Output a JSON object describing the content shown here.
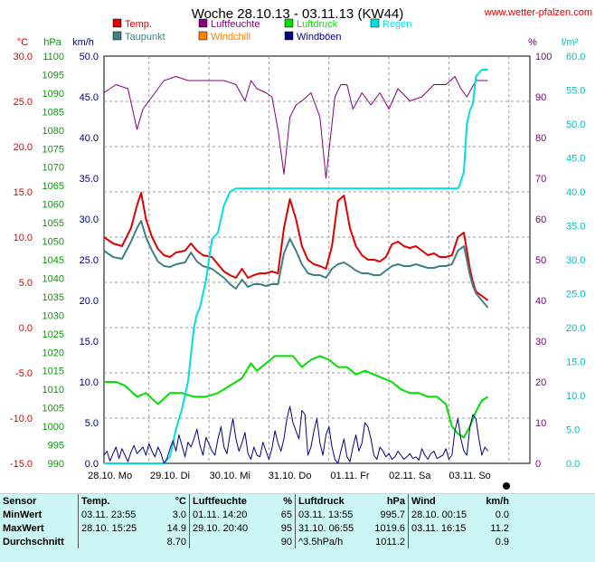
{
  "title": "Woche 28.10.13 - 03.11.13 (KW44)",
  "site": "www.wetter-pfalzen.com",
  "chart_data": {
    "type": "line",
    "title": "Woche 28.10.13 - 03.11.13 (KW44)",
    "x_labels": [
      "28.10. Mo",
      "29.10. Di",
      "30.10. Mi",
      "31.10. Do",
      "01.11. Fr",
      "02.11. Sa",
      "03.11. So"
    ],
    "axes": {
      "temp": {
        "unit": "°C",
        "min": -15,
        "max": 30,
        "ticks": [
          "30.0",
          "25.0",
          "20.0",
          "15.0",
          "10.0",
          "5.0",
          "0.0",
          "-5.0",
          "-10.0",
          "-15.0"
        ],
        "color": "#e00000"
      },
      "pressure": {
        "unit": "hPa",
        "min": 990,
        "max": 1100,
        "ticks": [
          "1100",
          "1095",
          "1090",
          "1085",
          "1080",
          "1075",
          "1070",
          "1065",
          "1060",
          "1055",
          "1050",
          "1045",
          "1040",
          "1035",
          "1030",
          "1025",
          "1020",
          "1015",
          "1010",
          "1005",
          "1000",
          "995",
          "990"
        ],
        "color": "#00a000"
      },
      "wind": {
        "unit": "km/h",
        "min": 0,
        "max": 50,
        "ticks": [
          "50.0",
          "45.0",
          "40.0",
          "35.0",
          "30.0",
          "25.0",
          "20.0",
          "15.0",
          "10.0",
          "5.0",
          "0.0"
        ],
        "color": "#000080"
      },
      "humidity": {
        "unit": "%",
        "min": 0,
        "max": 100,
        "ticks": [
          "100",
          "90",
          "80",
          "70",
          "60",
          "50",
          "40",
          "30",
          "20",
          "10",
          "0"
        ],
        "color": "#800080"
      },
      "rain": {
        "unit": "l/m²",
        "min": 0,
        "max": 60,
        "ticks": [
          "60.0",
          "55.0",
          "50.0",
          "45.0",
          "40.0",
          "35.0",
          "30.0",
          "25.0",
          "20.0",
          "15.0",
          "10.0",
          "5.0",
          "0.0"
        ],
        "color": "#00c0c0"
      }
    },
    "legend": [
      {
        "name": "Temp.",
        "color": "#e00000"
      },
      {
        "name": "Luftfeuchte",
        "color": "#800080"
      },
      {
        "name": "Luftdruck",
        "color": "#00e000"
      },
      {
        "name": "Regen",
        "color": "#00e0e0"
      },
      {
        "name": "Taupunkt",
        "color": "#408080"
      },
      {
        "name": "Windchill",
        "color": "#ff8000"
      },
      {
        "name": "Windböen",
        "color": "#000080"
      }
    ],
    "series": [
      {
        "name": "Temp.",
        "axis": "temp",
        "color": "#e00000",
        "x": [
          0,
          0.15,
          0.3,
          0.45,
          0.55,
          0.62,
          0.7,
          0.8,
          0.9,
          1.0,
          1.1,
          1.2,
          1.35,
          1.45,
          1.55,
          1.65,
          1.8,
          1.9,
          2.0,
          2.1,
          2.2,
          2.3,
          2.4,
          2.5,
          2.6,
          2.7,
          2.8,
          2.9,
          3.0,
          3.1,
          3.2,
          3.3,
          3.4,
          3.5,
          3.6,
          3.7,
          3.8,
          3.9,
          4.0,
          4.1,
          4.2,
          4.3,
          4.4,
          4.5,
          4.6,
          4.7,
          4.8,
          4.9,
          5.0,
          5.1,
          5.2,
          5.3,
          5.4,
          5.5,
          5.6,
          5.7,
          5.8,
          5.9,
          6.0,
          6.05,
          6.1,
          6.15,
          6.2,
          6.3,
          6.4
        ],
        "y": [
          10.0,
          9.3,
          9.0,
          11.0,
          13.5,
          14.9,
          12.0,
          10.0,
          8.7,
          8.0,
          7.8,
          8.3,
          8.5,
          9.3,
          8.5,
          8.0,
          7.8,
          7.0,
          6.2,
          5.8,
          5.5,
          6.5,
          5.5,
          5.8,
          6.0,
          6.0,
          6.2,
          6.0,
          11.0,
          14.2,
          12.0,
          9.0,
          7.5,
          7.0,
          6.8,
          6.5,
          9.0,
          14.0,
          14.6,
          11.0,
          9.0,
          8.0,
          7.5,
          7.5,
          7.3,
          7.8,
          9.2,
          9.5,
          9.0,
          8.8,
          9.0,
          8.5,
          8.0,
          8.2,
          7.8,
          7.8,
          8.0,
          10.0,
          10.5,
          8.5,
          6.5,
          5.0,
          4.0,
          3.5,
          3.0
        ]
      },
      {
        "name": "Taupunkt",
        "axis": "temp",
        "color": "#408080",
        "x": [
          0,
          0.15,
          0.3,
          0.45,
          0.55,
          0.62,
          0.7,
          0.8,
          0.9,
          1.0,
          1.1,
          1.2,
          1.35,
          1.45,
          1.55,
          1.65,
          1.8,
          1.9,
          2.0,
          2.1,
          2.2,
          2.3,
          2.4,
          2.5,
          2.6,
          2.7,
          2.8,
          2.9,
          3.0,
          3.1,
          3.2,
          3.3,
          3.4,
          3.5,
          3.6,
          3.7,
          3.8,
          3.9,
          4.0,
          4.1,
          4.2,
          4.3,
          4.4,
          4.5,
          4.6,
          4.7,
          4.8,
          4.9,
          5.0,
          5.1,
          5.2,
          5.3,
          5.4,
          5.5,
          5.6,
          5.7,
          5.8,
          5.9,
          6.0,
          6.05,
          6.1,
          6.15,
          6.2,
          6.3,
          6.4
        ],
        "y": [
          8.5,
          7.8,
          7.6,
          9.5,
          11.0,
          11.8,
          10.0,
          8.5,
          7.3,
          6.8,
          6.7,
          7.0,
          7.2,
          8.3,
          7.3,
          6.8,
          6.5,
          6.0,
          5.5,
          4.8,
          4.3,
          5.3,
          4.5,
          4.8,
          4.8,
          4.6,
          4.8,
          4.8,
          8.2,
          9.8,
          8.5,
          7.0,
          6.0,
          5.8,
          5.8,
          5.5,
          6.5,
          7.0,
          7.2,
          6.8,
          6.3,
          6.0,
          6.0,
          5.8,
          5.8,
          6.3,
          6.8,
          7.0,
          6.8,
          6.8,
          7.0,
          6.8,
          6.6,
          6.6,
          6.8,
          6.8,
          7.0,
          8.5,
          9.0,
          7.5,
          5.8,
          4.6,
          3.8,
          3.0,
          2.2
        ]
      },
      {
        "name": "Luftfeuchte",
        "axis": "humidity",
        "color": "#800080",
        "x": [
          0,
          0.2,
          0.4,
          0.55,
          0.65,
          0.8,
          1.0,
          1.2,
          1.4,
          1.6,
          1.8,
          2.0,
          2.2,
          2.35,
          2.45,
          2.55,
          2.7,
          2.8,
          2.9,
          3.0,
          3.1,
          3.2,
          3.3,
          3.45,
          3.6,
          3.7,
          3.85,
          3.95,
          4.05,
          4.15,
          4.3,
          4.45,
          4.6,
          4.75,
          4.9,
          5.1,
          5.3,
          5.5,
          5.7,
          5.85,
          5.95,
          6.05,
          6.2,
          6.4
        ],
        "y": [
          91,
          93,
          92,
          82,
          87,
          90,
          94,
          95,
          94,
          94,
          94,
          94,
          93,
          89,
          94,
          92,
          91,
          90,
          82,
          71,
          85,
          88,
          89,
          91,
          85,
          70,
          90,
          93,
          93,
          87,
          91,
          88,
          91,
          87,
          92,
          89,
          90,
          93,
          93,
          95,
          92,
          90,
          94,
          94
        ]
      },
      {
        "name": "Luftdruck",
        "axis": "pressure",
        "color": "#00e000",
        "x": [
          0,
          0.2,
          0.35,
          0.55,
          0.7,
          0.9,
          1.1,
          1.3,
          1.5,
          1.7,
          1.9,
          2.1,
          2.3,
          2.45,
          2.55,
          2.7,
          2.85,
          3.0,
          3.15,
          3.3,
          3.45,
          3.6,
          3.75,
          3.9,
          4.05,
          4.2,
          4.35,
          4.5,
          4.65,
          4.8,
          4.95,
          5.1,
          5.25,
          5.4,
          5.55,
          5.7,
          5.8,
          5.9,
          6.0,
          6.1,
          6.2,
          6.3,
          6.4
        ],
        "y": [
          1012,
          1012,
          1011,
          1008,
          1009,
          1006,
          1009,
          1009,
          1008,
          1008,
          1009,
          1011,
          1013,
          1017,
          1015,
          1017,
          1019,
          1019,
          1019,
          1016,
          1018,
          1019,
          1018,
          1016,
          1016,
          1014,
          1015,
          1014,
          1013,
          1012,
          1010,
          1009,
          1009,
          1008,
          1008,
          1006,
          1000,
          998,
          997,
          1000,
          1004,
          1007,
          1008
        ]
      },
      {
        "name": "Regen",
        "axis": "rain",
        "color": "#00e0e0",
        "x": [
          0,
          0.9,
          1.0,
          1.1,
          1.15,
          1.2,
          1.3,
          1.4,
          1.45,
          1.5,
          1.55,
          1.6,
          1.65,
          1.7,
          1.75,
          1.8,
          1.9,
          2.0,
          2.1,
          2.2,
          2.25,
          2.3,
          2.4,
          2.5,
          2.6,
          2.7,
          2.8,
          2.9,
          3.0,
          3.1,
          3.2,
          3.3,
          3.4,
          3.5,
          3.6,
          3.7,
          3.8,
          3.9,
          4.0,
          4.1,
          4.2,
          4.3,
          4.4,
          4.5,
          4.6,
          4.7,
          4.8,
          4.9,
          5.0,
          5.1,
          5.2,
          5.3,
          5.4,
          5.5,
          5.6,
          5.7,
          5.8,
          5.9,
          5.93,
          6.0,
          6.05,
          6.1,
          6.15,
          6.2,
          6.3,
          6.4
        ],
        "y": [
          0,
          0,
          0,
          1,
          3,
          5,
          8,
          12,
          16,
          20,
          22,
          23,
          25,
          27,
          30,
          33,
          34,
          38,
          40,
          40.5,
          40.5,
          40.5,
          40.5,
          40.5,
          40.5,
          40.5,
          40.5,
          40.5,
          40.5,
          40.5,
          40.5,
          40.5,
          40.5,
          40.5,
          40.5,
          40.5,
          40.5,
          40.5,
          40.5,
          40.5,
          40.5,
          40.5,
          40.5,
          40.5,
          40.5,
          40.5,
          40.5,
          40.5,
          40.5,
          40.5,
          40.5,
          40.5,
          40.5,
          40.5,
          40.5,
          40.5,
          40.5,
          40.5,
          41,
          43,
          50,
          52,
          53,
          57,
          58,
          58
        ]
      },
      {
        "name": "Windböen",
        "axis": "wind",
        "color": "#000080",
        "x": [
          0,
          0.05,
          0.1,
          0.15,
          0.2,
          0.25,
          0.3,
          0.35,
          0.4,
          0.45,
          0.5,
          0.55,
          0.6,
          0.65,
          0.7,
          0.75,
          0.8,
          0.85,
          0.9,
          0.95,
          1.0,
          1.05,
          1.1,
          1.15,
          1.2,
          1.25,
          1.3,
          1.35,
          1.4,
          1.45,
          1.5,
          1.55,
          1.6,
          1.65,
          1.7,
          1.75,
          1.8,
          1.85,
          1.9,
          1.95,
          2.0,
          2.05,
          2.1,
          2.15,
          2.2,
          2.25,
          2.3,
          2.35,
          2.4,
          2.45,
          2.5,
          2.55,
          2.6,
          2.65,
          2.7,
          2.75,
          2.8,
          2.85,
          2.9,
          2.95,
          3.0,
          3.05,
          3.1,
          3.15,
          3.2,
          3.25,
          3.3,
          3.35,
          3.4,
          3.45,
          3.5,
          3.55,
          3.6,
          3.65,
          3.7,
          3.75,
          3.8,
          3.85,
          3.9,
          3.95,
          4.0,
          4.05,
          4.1,
          4.15,
          4.2,
          4.25,
          4.3,
          4.35,
          4.4,
          4.45,
          4.5,
          4.55,
          4.6,
          4.65,
          4.7,
          4.75,
          4.8,
          4.85,
          4.9,
          4.95,
          5.0,
          5.05,
          5.1,
          5.15,
          5.2,
          5.25,
          5.3,
          5.35,
          5.4,
          5.45,
          5.5,
          5.55,
          5.6,
          5.65,
          5.7,
          5.75,
          5.8,
          5.85,
          5.9,
          5.95,
          6.0,
          6.05,
          6.1,
          6.15,
          6.2,
          6.25,
          6.3,
          6.35,
          6.4
        ],
        "y": [
          1.0,
          1.5,
          0.3,
          1.2,
          2.0,
          0.6,
          1.8,
          1.0,
          0.2,
          1.4,
          2.2,
          1.2,
          1.6,
          2.0,
          1.0,
          2.4,
          1.5,
          0.8,
          2.0,
          1.2,
          0.0,
          0.6,
          1.8,
          2.8,
          1.5,
          3.5,
          2.2,
          0.8,
          2.6,
          2.0,
          3.0,
          4.2,
          2.2,
          1.0,
          3.2,
          2.4,
          1.5,
          1.0,
          3.0,
          4.5,
          2.0,
          1.2,
          3.5,
          5.5,
          3.0,
          1.5,
          2.5,
          3.8,
          1.2,
          0.5,
          2.0,
          1.0,
          0.8,
          2.6,
          1.5,
          0.5,
          1.8,
          4.0,
          2.5,
          1.5,
          3.0,
          5.5,
          7.0,
          5.0,
          4.0,
          3.0,
          6.5,
          6.0,
          1.0,
          2.0,
          4.0,
          5.5,
          2.5,
          1.0,
          3.5,
          4.5,
          2.0,
          0.5,
          0.0,
          1.5,
          3.0,
          0.8,
          0.2,
          2.0,
          3.5,
          1.5,
          2.5,
          5.0,
          4.5,
          3.0,
          1.0,
          0.5,
          2.0,
          1.5,
          0.8,
          1.2,
          0.5,
          0.8,
          1.5,
          1.0,
          0.5,
          0.8,
          1.2,
          0.6,
          0.8,
          0.4,
          1.8,
          1.0,
          0.5,
          1.2,
          1.5,
          0.6,
          0.8,
          1.0,
          1.8,
          0.5,
          1.0,
          4.0,
          5.5,
          3.0,
          1.5,
          1.0,
          4.5,
          6.0,
          5.5,
          3.0,
          1.0,
          2.0,
          1.5
        ]
      }
    ]
  },
  "stats": {
    "headers": [
      "Sensor",
      "Temp.",
      "°C",
      "Luftfeuchte",
      "%",
      "Luftdruck",
      "hPa",
      "Wind",
      "km/h"
    ],
    "rows": [
      {
        "label": "MinWert",
        "t_time": "03.11.  23:55",
        "t_val": "3.0",
        "h_time": "01.11.  14:20",
        "h_val": "65",
        "p_time": "03.11.  13:55",
        "p_val": "995.7",
        "w_time": "28.10.  00:15",
        "w_val": "0.0"
      },
      {
        "label": "MaxWert",
        "t_time": "28.10.  15:25",
        "t_val": "14.9",
        "h_time": "29.10.  20:40",
        "h_val": "95",
        "p_time": "31.10.  06:55",
        "p_val": "1019.6",
        "w_time": "03.11.  16:15",
        "w_val": "11.2"
      },
      {
        "label": "Durchschnitt",
        "t_time": "",
        "t_val": "8.70",
        "h_time": "",
        "h_val": "90",
        "p_time": "^3.5hPa/h",
        "p_val": "1011.2",
        "w_time": "",
        "w_val": "0.9"
      }
    ]
  }
}
